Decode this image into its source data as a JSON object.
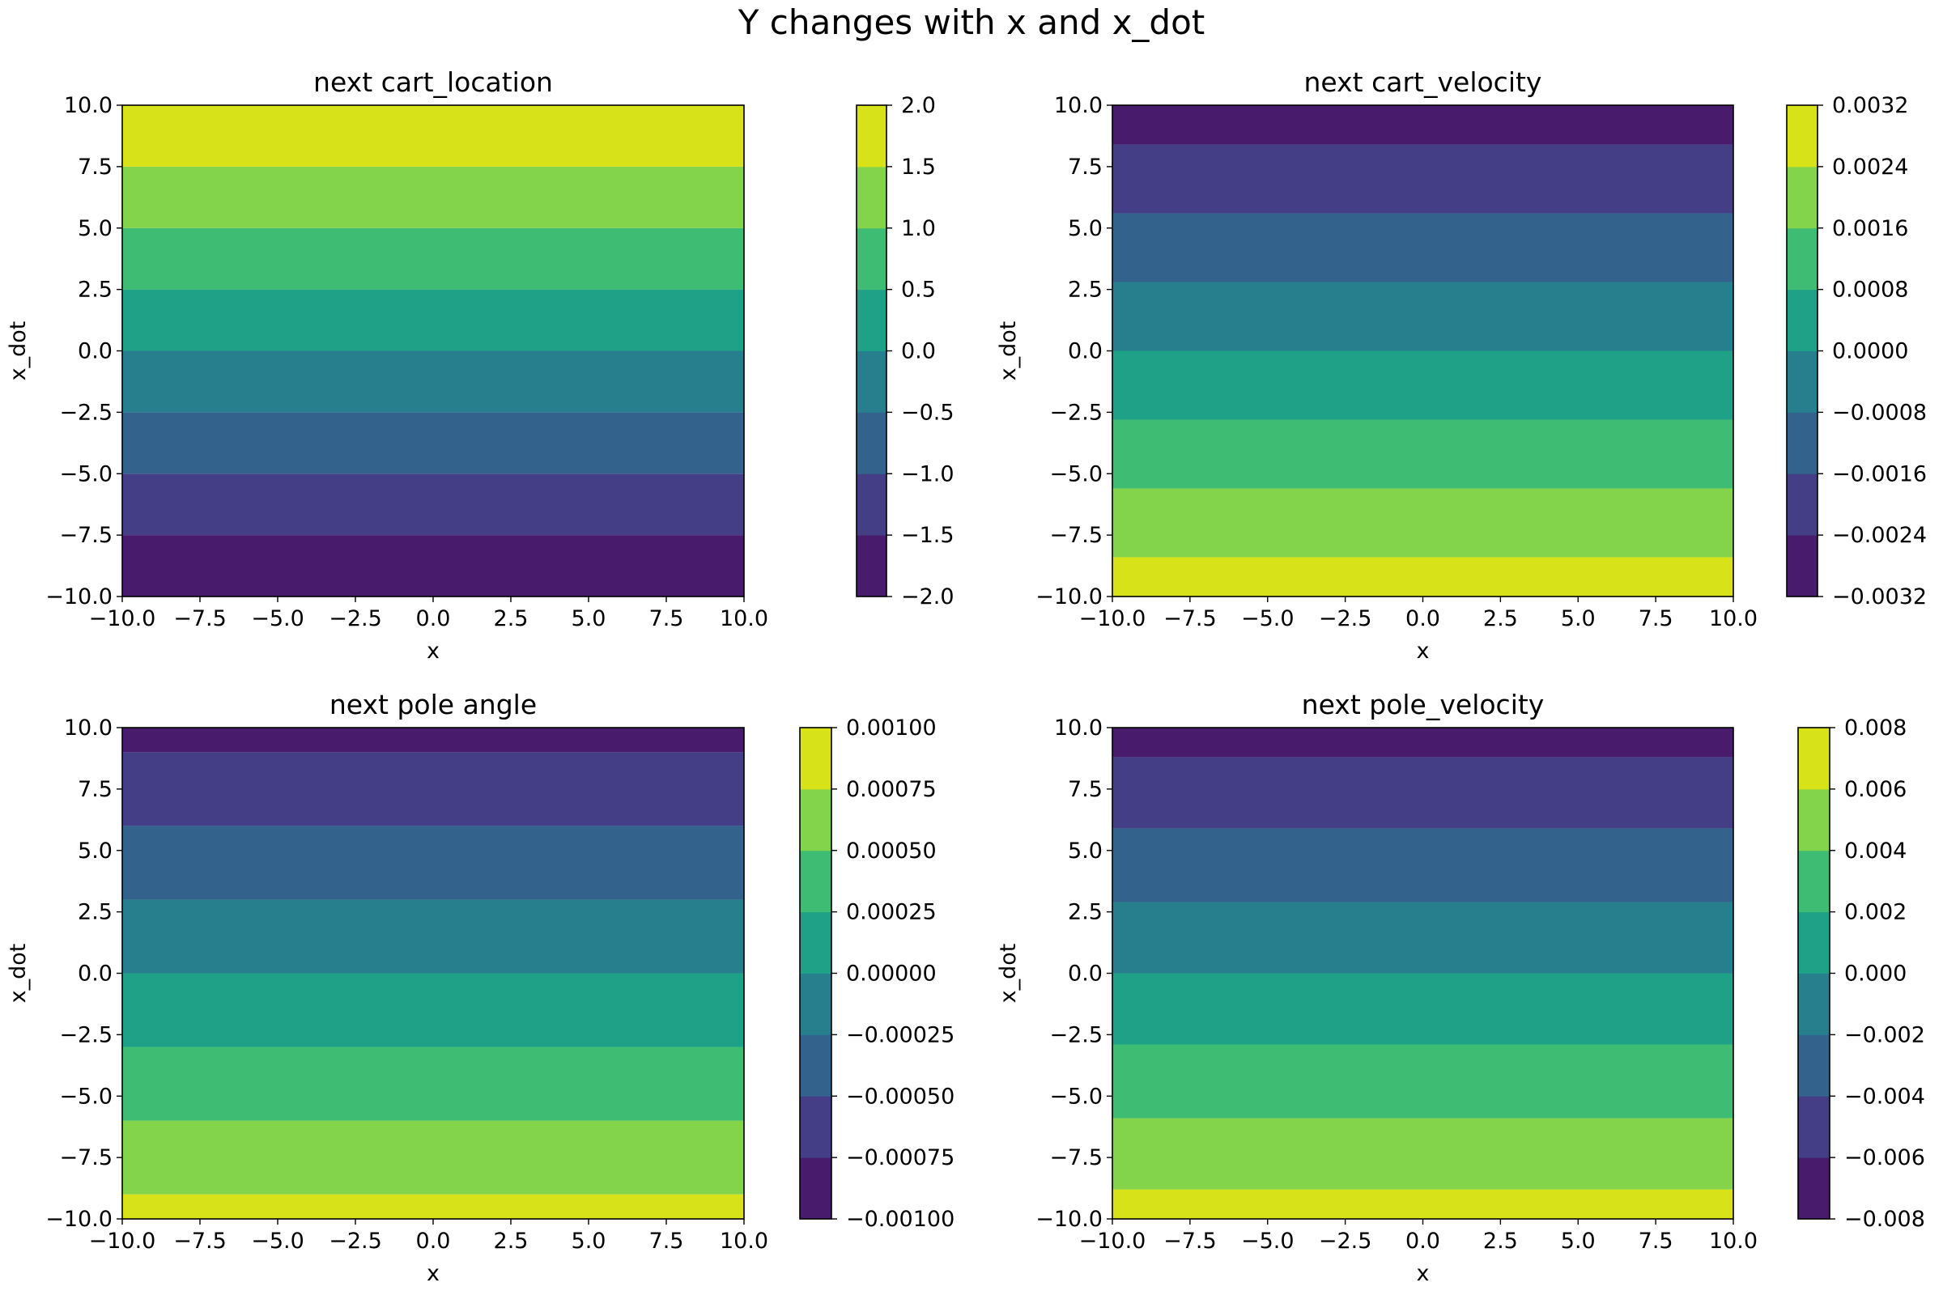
{
  "figure": {
    "title": "Y changes with x and x_dot"
  },
  "colors": {
    "viridis8": [
      "#481b6d",
      "#433e85",
      "#33638d",
      "#277f8e",
      "#1fa187",
      "#3fbc73",
      "#84d44b",
      "#d8e219"
    ],
    "spine": "#000000"
  },
  "chart_data": [
    {
      "type": "heatmap",
      "subtype": "filled-contour",
      "title": "next cart_location",
      "xlabel": "x",
      "ylabel": "x_dot",
      "xlim": [
        -10,
        10
      ],
      "ylim": [
        -10,
        10
      ],
      "xticks": [
        "−10.0",
        "−7.5",
        "−5.0",
        "−2.5",
        "0.0",
        "2.5",
        "5.0",
        "7.5",
        "10.0"
      ],
      "yticks": [
        "−10.0",
        "−7.5",
        "−5.0",
        "−2.5",
        "0.0",
        "2.5",
        "5.0",
        "7.5",
        "10.0"
      ],
      "colorbar": {
        "levels": [
          -2.0,
          -1.5,
          -1.0,
          -0.5,
          0.0,
          0.5,
          1.0,
          1.5,
          2.0
        ],
        "labels": [
          "−2.0",
          "−1.5",
          "−1.0",
          "−0.5",
          "0.0",
          "0.5",
          "1.0",
          "1.5",
          "2.0"
        ]
      },
      "bands": [
        {
          "y_from": -10.0,
          "y_to": -7.5,
          "level": 0
        },
        {
          "y_from": -7.5,
          "y_to": -5.0,
          "level": 1
        },
        {
          "y_from": -5.0,
          "y_to": -2.5,
          "level": 2
        },
        {
          "y_from": -2.5,
          "y_to": 0.0,
          "level": 3
        },
        {
          "y_from": 0.0,
          "y_to": 2.5,
          "level": 4
        },
        {
          "y_from": 2.5,
          "y_to": 5.0,
          "level": 5
        },
        {
          "y_from": 5.0,
          "y_to": 7.5,
          "level": 6
        },
        {
          "y_from": 7.5,
          "y_to": 10.0,
          "level": 7
        }
      ]
    },
    {
      "type": "heatmap",
      "subtype": "filled-contour",
      "title": "next cart_velocity",
      "xlabel": "x",
      "ylabel": "x_dot",
      "xlim": [
        -10,
        10
      ],
      "ylim": [
        -10,
        10
      ],
      "xticks": [
        "−10.0",
        "−7.5",
        "−5.0",
        "−2.5",
        "0.0",
        "2.5",
        "5.0",
        "7.5",
        "10.0"
      ],
      "yticks": [
        "−10.0",
        "−7.5",
        "−5.0",
        "−2.5",
        "0.0",
        "2.5",
        "5.0",
        "7.5",
        "10.0"
      ],
      "colorbar": {
        "levels": [
          -0.0032,
          -0.0024,
          -0.0016,
          -0.0008,
          0.0,
          0.0008,
          0.0016,
          0.0024,
          0.0032
        ],
        "labels": [
          "−0.0032",
          "−0.0024",
          "−0.0016",
          "−0.0008",
          "0.0000",
          "0.0008",
          "0.0016",
          "0.0024",
          "0.0032"
        ]
      },
      "bands": [
        {
          "y_from": -10.0,
          "y_to": -8.4,
          "level": 7
        },
        {
          "y_from": -8.4,
          "y_to": -5.6,
          "level": 6
        },
        {
          "y_from": -5.6,
          "y_to": -2.8,
          "level": 5
        },
        {
          "y_from": -2.8,
          "y_to": 0.0,
          "level": 4
        },
        {
          "y_from": 0.0,
          "y_to": 2.8,
          "level": 3
        },
        {
          "y_from": 2.8,
          "y_to": 5.6,
          "level": 2
        },
        {
          "y_from": 5.6,
          "y_to": 8.4,
          "level": 1
        },
        {
          "y_from": 8.4,
          "y_to": 10.0,
          "level": 0
        }
      ]
    },
    {
      "type": "heatmap",
      "subtype": "filled-contour",
      "title": "next pole angle",
      "xlabel": "x",
      "ylabel": "x_dot",
      "xlim": [
        -10,
        10
      ],
      "ylim": [
        -10,
        10
      ],
      "xticks": [
        "−10.0",
        "−7.5",
        "−5.0",
        "−2.5",
        "0.0",
        "2.5",
        "5.0",
        "7.5",
        "10.0"
      ],
      "yticks": [
        "−10.0",
        "−7.5",
        "−5.0",
        "−2.5",
        "0.0",
        "2.5",
        "5.0",
        "7.5",
        "10.0"
      ],
      "colorbar": {
        "levels": [
          -0.001,
          -0.00075,
          -0.0005,
          -0.00025,
          0.0,
          0.00025,
          0.0005,
          0.00075,
          0.001
        ],
        "labels": [
          "−0.00100",
          "−0.00075",
          "−0.00050",
          "−0.00025",
          "0.00000",
          "0.00025",
          "0.00050",
          "0.00075",
          "0.00100"
        ]
      },
      "bands": [
        {
          "y_from": -10.0,
          "y_to": -9.0,
          "level": 7
        },
        {
          "y_from": -9.0,
          "y_to": -6.0,
          "level": 6
        },
        {
          "y_from": -6.0,
          "y_to": -3.0,
          "level": 5
        },
        {
          "y_from": -3.0,
          "y_to": 0.0,
          "level": 4
        },
        {
          "y_from": 0.0,
          "y_to": 3.0,
          "level": 3
        },
        {
          "y_from": 3.0,
          "y_to": 6.0,
          "level": 2
        },
        {
          "y_from": 6.0,
          "y_to": 9.0,
          "level": 1
        },
        {
          "y_from": 9.0,
          "y_to": 10.0,
          "level": 0
        }
      ]
    },
    {
      "type": "heatmap",
      "subtype": "filled-contour",
      "title": "next pole_velocity",
      "xlabel": "x",
      "ylabel": "x_dot",
      "xlim": [
        -10,
        10
      ],
      "ylim": [
        -10,
        10
      ],
      "xticks": [
        "−10.0",
        "−7.5",
        "−5.0",
        "−2.5",
        "0.0",
        "2.5",
        "5.0",
        "7.5",
        "10.0"
      ],
      "yticks": [
        "−10.0",
        "−7.5",
        "−5.0",
        "−2.5",
        "0.0",
        "2.5",
        "5.0",
        "7.5",
        "10.0"
      ],
      "colorbar": {
        "levels": [
          -0.008,
          -0.006,
          -0.004,
          -0.002,
          0.0,
          0.002,
          0.004,
          0.006,
          0.008
        ],
        "labels": [
          "−0.008",
          "−0.006",
          "−0.004",
          "−0.002",
          "0.000",
          "0.002",
          "0.004",
          "0.006",
          "0.008"
        ]
      },
      "bands": [
        {
          "y_from": -10.0,
          "y_to": -8.8,
          "level": 7
        },
        {
          "y_from": -8.8,
          "y_to": -5.9,
          "level": 6
        },
        {
          "y_from": -5.9,
          "y_to": -2.9,
          "level": 5
        },
        {
          "y_from": -2.9,
          "y_to": 0.0,
          "level": 4
        },
        {
          "y_from": 0.0,
          "y_to": 2.9,
          "level": 3
        },
        {
          "y_from": 2.9,
          "y_to": 5.9,
          "level": 2
        },
        {
          "y_from": 5.9,
          "y_to": 8.8,
          "level": 1
        },
        {
          "y_from": 8.8,
          "y_to": 10.0,
          "level": 0
        }
      ]
    }
  ]
}
